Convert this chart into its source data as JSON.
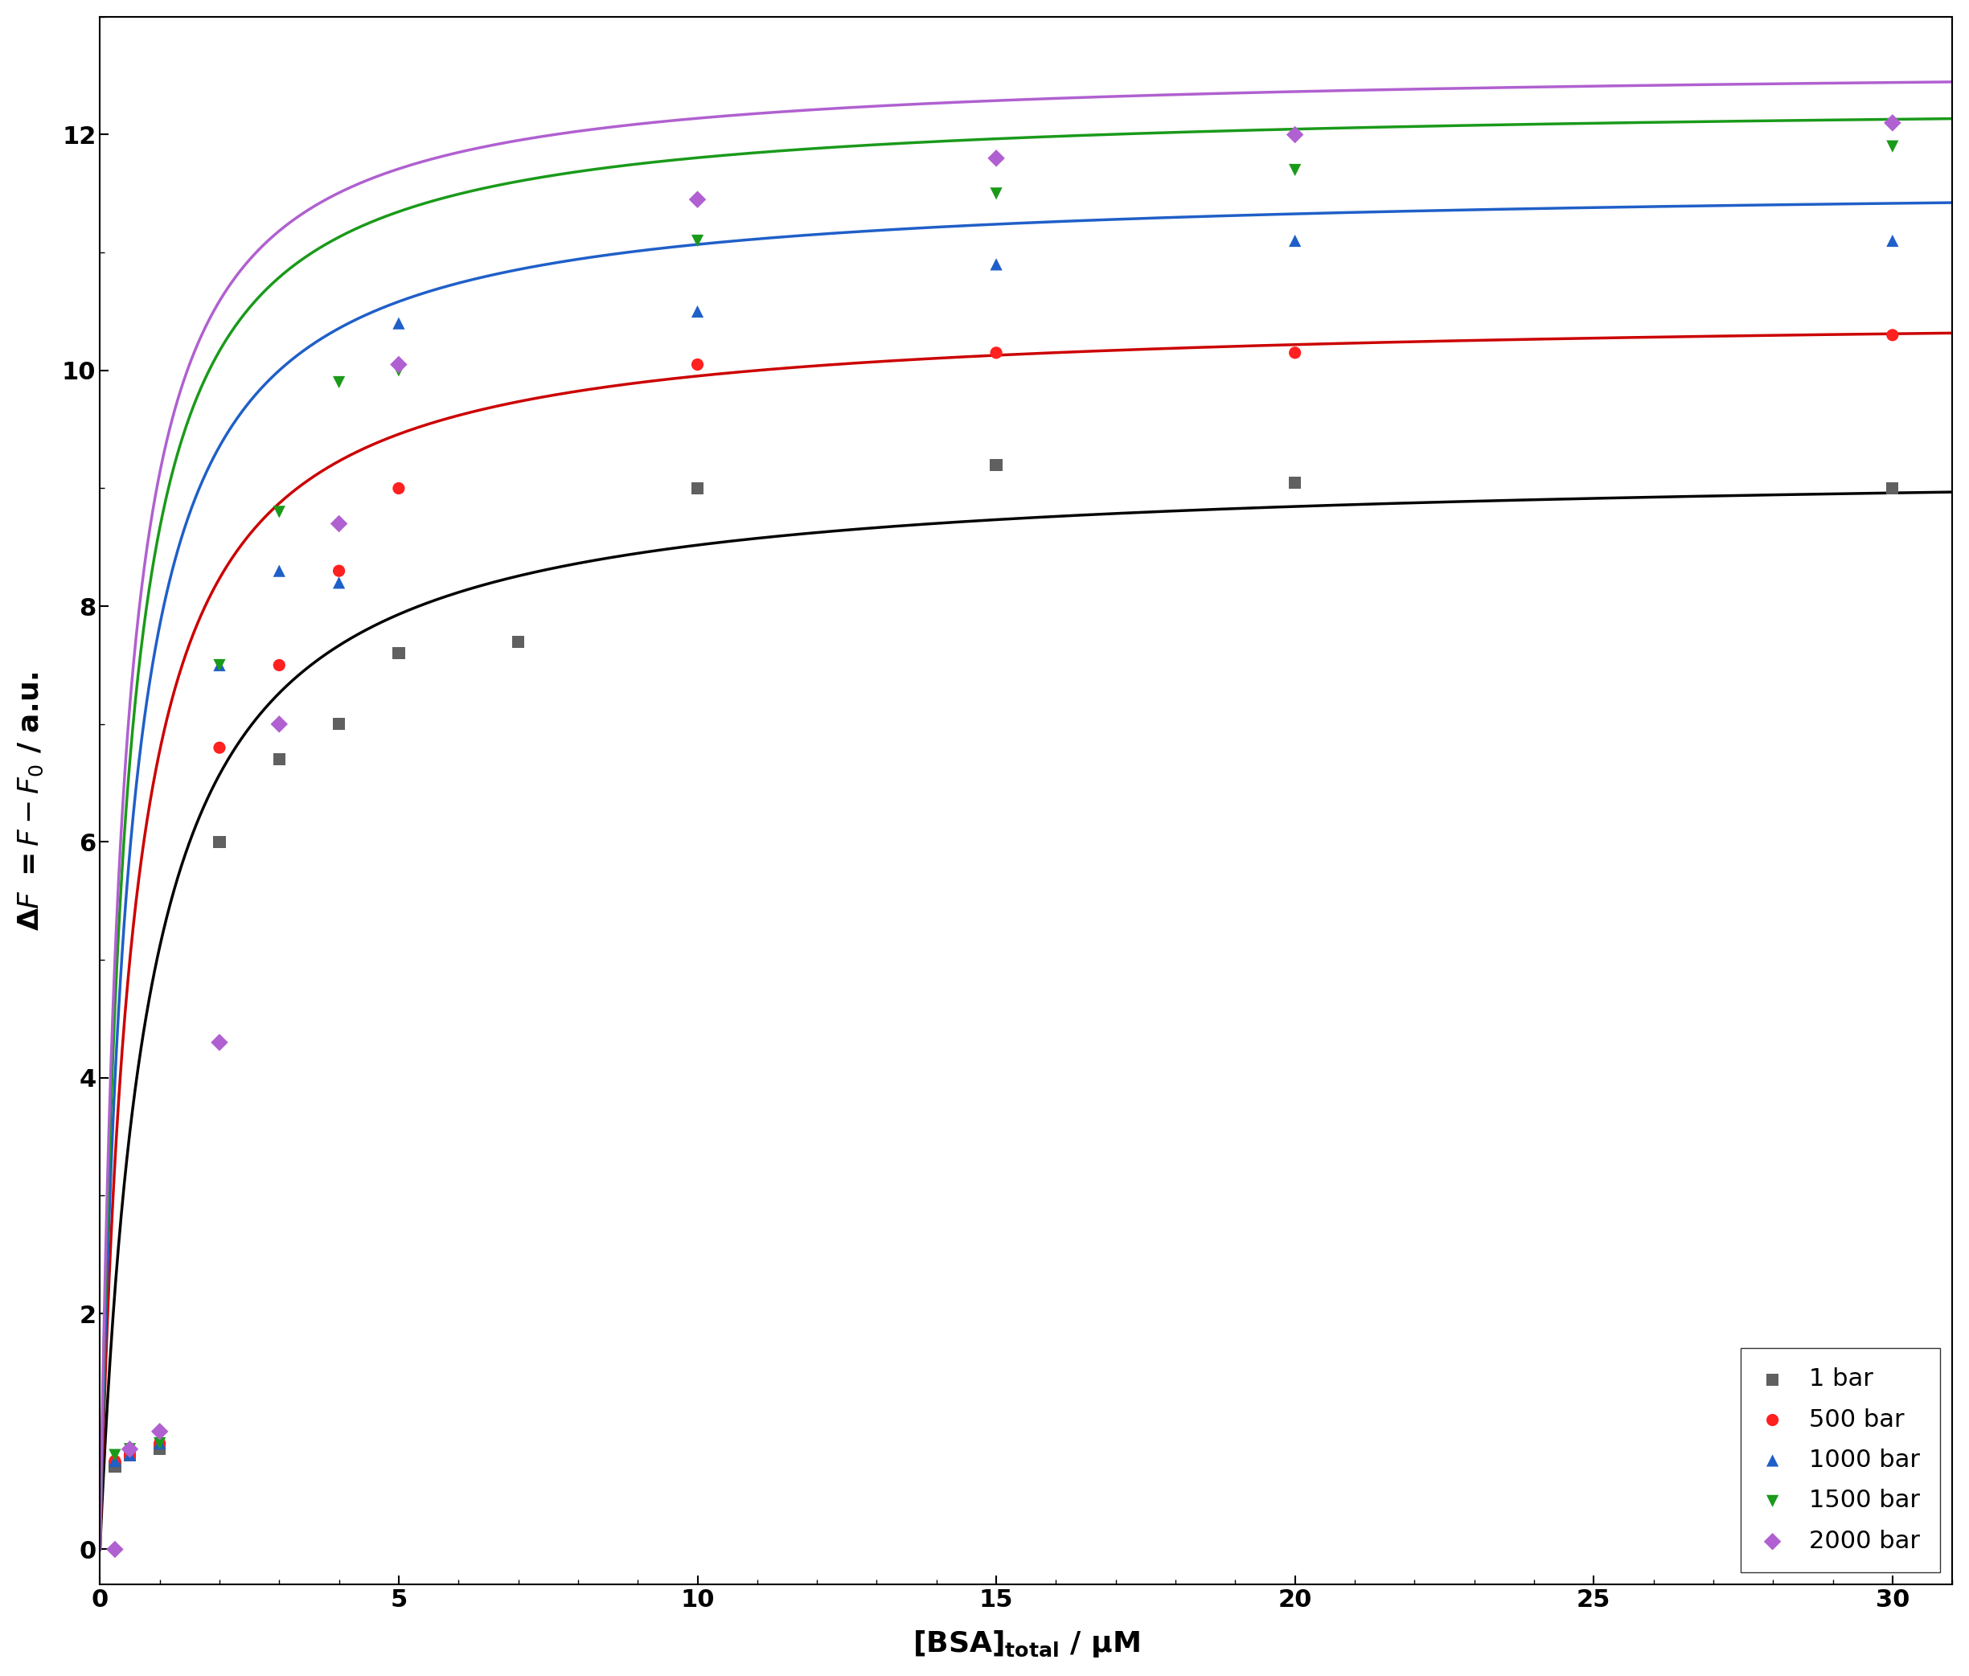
{
  "title": "",
  "xlabel": "[BSA]$_{total}$ / μM",
  "ylabel": "ΔF = F−F$_0$ / a.u.",
  "xlim": [
    0,
    31
  ],
  "ylim": [
    -0.3,
    13
  ],
  "xticks": [
    0,
    5,
    10,
    15,
    20,
    25,
    30
  ],
  "yticks": [
    0,
    2,
    4,
    6,
    8,
    10,
    12
  ],
  "series": [
    {
      "label": "1 bar",
      "color": "#606060",
      "line_color": "#000000",
      "marker": "s",
      "x": [
        0.25,
        0.5,
        1.0,
        2.0,
        3.0,
        4.0,
        5.0,
        7.0,
        10.0,
        15.0,
        20.0,
        30.0
      ],
      "y": [
        0.7,
        0.8,
        0.85,
        6.0,
        6.7,
        7.0,
        7.6,
        7.7,
        9.0,
        9.2,
        9.05,
        9.0
      ],
      "Fmax": 9.2,
      "Kd": 0.8
    },
    {
      "label": "500 bar",
      "color": "#ff2020",
      "line_color": "#cc0000",
      "marker": "o",
      "x": [
        0.25,
        0.5,
        1.0,
        2.0,
        3.0,
        4.0,
        5.0,
        10.0,
        15.0,
        20.0,
        30.0
      ],
      "y": [
        0.75,
        0.8,
        0.9,
        6.8,
        7.5,
        8.3,
        9.0,
        10.05,
        10.15,
        10.15,
        10.3
      ],
      "Fmax": 10.5,
      "Kd": 0.55
    },
    {
      "label": "1000 bar",
      "color": "#1f5fc8",
      "line_color": "#1f5fc8",
      "marker": "^",
      "x": [
        0.25,
        0.5,
        1.0,
        2.0,
        3.0,
        4.0,
        5.0,
        10.0,
        15.0,
        20.0,
        30.0
      ],
      "y": [
        0.75,
        0.8,
        0.9,
        7.5,
        8.3,
        8.2,
        10.4,
        10.5,
        10.9,
        11.1,
        11.1
      ],
      "Fmax": 11.6,
      "Kd": 0.48
    },
    {
      "label": "1500 bar",
      "color": "#1a9a1a",
      "line_color": "#1a9a1a",
      "marker": "v",
      "x": [
        0.25,
        0.5,
        1.0,
        2.0,
        3.0,
        4.0,
        5.0,
        10.0,
        15.0,
        20.0,
        30.0
      ],
      "y": [
        0.8,
        0.85,
        0.9,
        7.5,
        8.8,
        9.9,
        10.0,
        11.1,
        11.5,
        11.7,
        11.9
      ],
      "Fmax": 12.3,
      "Kd": 0.42
    },
    {
      "label": "2000 bar",
      "color": "#b060d0",
      "line_color": "#b060d0",
      "marker": "D",
      "x": [
        0.25,
        0.5,
        1.0,
        2.0,
        3.0,
        4.0,
        5.0,
        10.0,
        15.0,
        20.0,
        30.0
      ],
      "y": [
        0.0,
        0.85,
        1.0,
        4.3,
        7.0,
        8.7,
        10.05,
        11.45,
        11.8,
        12.0,
        12.1
      ],
      "Fmax": 12.6,
      "Kd": 0.38
    }
  ],
  "legend_loc": "lower right",
  "background_color": "#ffffff",
  "marker_size": 120,
  "line_width": 2.5,
  "font_size": 22,
  "tick_font_size": 22,
  "label_font_size": 26
}
